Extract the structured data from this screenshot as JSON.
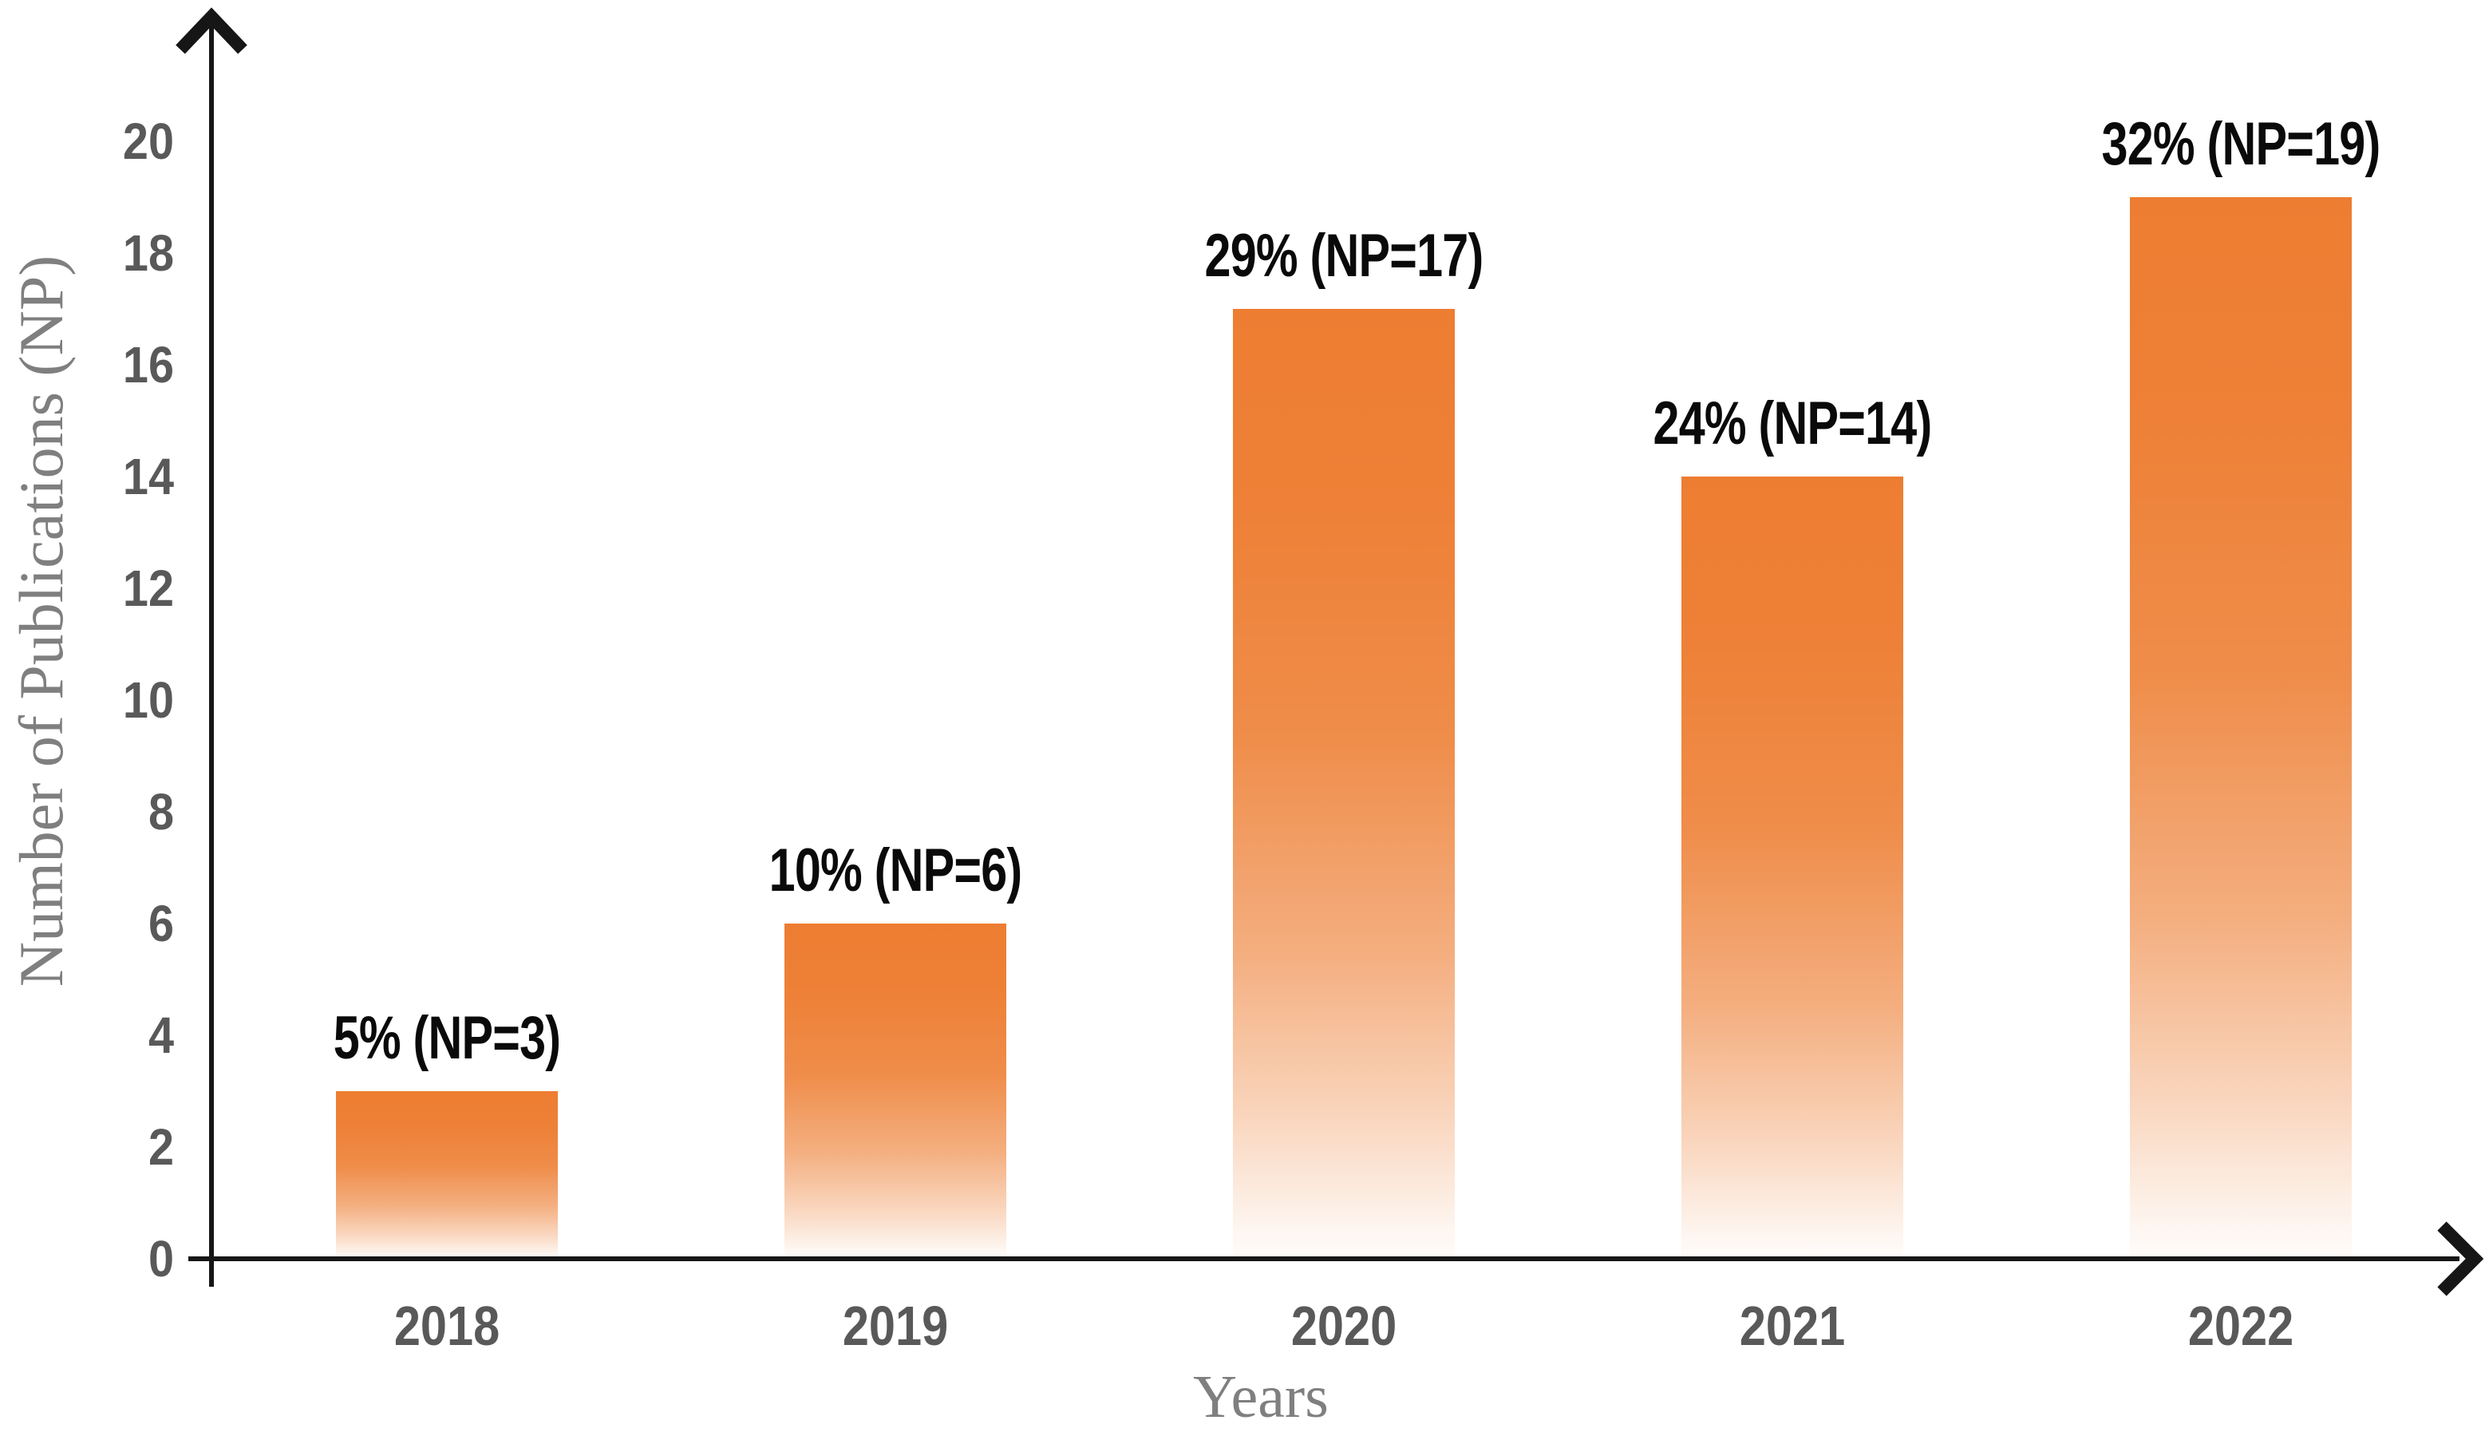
{
  "chart_data": {
    "type": "bar",
    "title": "",
    "categories": [
      "2018",
      "2019",
      "2020",
      "2021",
      "2022"
    ],
    "values": [
      3,
      6,
      17,
      14,
      19
    ],
    "percentages": [
      5,
      10,
      29,
      24,
      32
    ],
    "bar_labels": [
      "5% (NP=3)",
      "10% (NP=6)",
      "29% (NP=17)",
      "24% (NP=14)",
      "32% (NP=19)"
    ],
    "xlabel": "Years",
    "ylabel": "Number of Publications (NP)",
    "ylim": [
      0,
      20
    ],
    "yticks": [
      0,
      2,
      4,
      6,
      8,
      10,
      12,
      14,
      16,
      18,
      20
    ],
    "grid": false,
    "legend": "none",
    "colors": {
      "bar_top": "#ED7D31",
      "bar_fade_to": "#FFFFFF",
      "bar_label": "#0A0A0A",
      "tick_label": "#595959",
      "axis_title": "#7F7F7F",
      "axis_line": "#161616"
    }
  }
}
